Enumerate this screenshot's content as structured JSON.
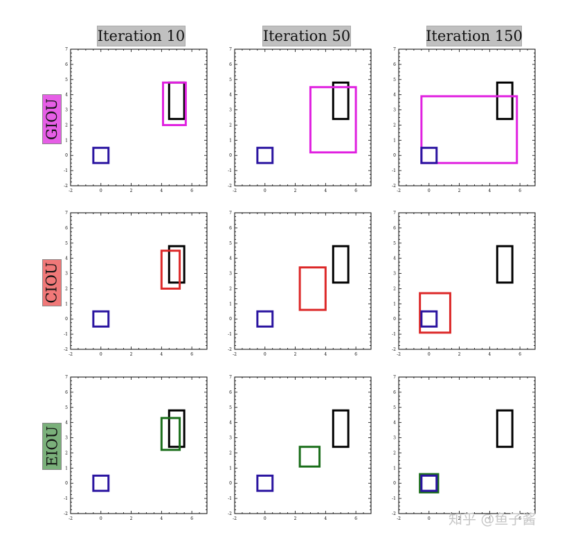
{
  "columns": [
    "Iteration 10",
    "Iteration 50",
    "Iteration 150"
  ],
  "rows": [
    {
      "label": "GIOU",
      "color": "#e65ee6",
      "box_color": "#e020e0"
    },
    {
      "label": "CIOU",
      "color": "#f07878",
      "box_color": "#dc2828"
    },
    {
      "label": "EIOU",
      "color": "#7ab07a",
      "box_color": "#1a6e1a"
    }
  ],
  "watermark": "知乎 @鱼子酱",
  "chart_data": {
    "type": "diagram",
    "xlim": [
      -2,
      7
    ],
    "ylim": [
      -2,
      7
    ],
    "x_ticks": [
      "-2",
      "0",
      "2",
      "4",
      "6"
    ],
    "y_ticks": [
      "-2",
      "-1",
      "0",
      "1",
      "2",
      "3",
      "4",
      "5",
      "6",
      "7"
    ],
    "anchor_box": {
      "x1": -0.5,
      "y1": -0.5,
      "x2": 0.5,
      "y2": 0.5,
      "color": "#2a14a0"
    },
    "target_box": {
      "x1": 4.5,
      "y1": 2.4,
      "x2": 5.5,
      "y2": 4.8,
      "color": "#000000"
    },
    "predicted_boxes": [
      [
        {
          "x1": 4.1,
          "y1": 2.0,
          "x2": 5.6,
          "y2": 4.8
        },
        {
          "x1": 3.0,
          "y1": 0.2,
          "x2": 6.0,
          "y2": 4.5
        },
        {
          "x1": -0.5,
          "y1": -0.5,
          "x2": 5.8,
          "y2": 3.9
        }
      ],
      [
        {
          "x1": 4.0,
          "y1": 2.0,
          "x2": 5.2,
          "y2": 4.5
        },
        {
          "x1": 2.3,
          "y1": 0.6,
          "x2": 4.0,
          "y2": 3.4
        },
        {
          "x1": -0.6,
          "y1": -0.9,
          "x2": 1.4,
          "y2": 1.7
        }
      ],
      [
        {
          "x1": 4.0,
          "y1": 2.2,
          "x2": 5.2,
          "y2": 4.3
        },
        {
          "x1": 2.3,
          "y1": 1.1,
          "x2": 3.6,
          "y2": 2.4
        },
        {
          "x1": -0.6,
          "y1": -0.6,
          "x2": 0.6,
          "y2": 0.6
        }
      ]
    ]
  }
}
